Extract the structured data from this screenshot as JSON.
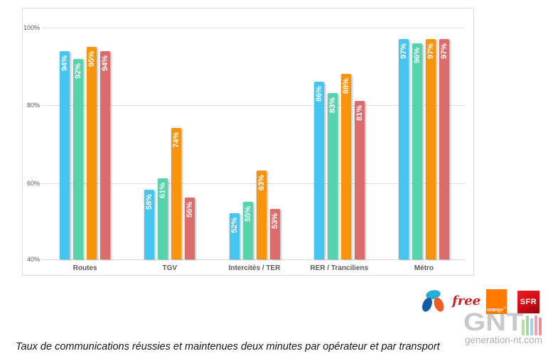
{
  "caption": "Taux de communications réussies et maintenues deux minutes par opérateur et par transport",
  "watermark": {
    "logo_text": "GNT",
    "site": "generation-nt.com"
  },
  "chart_data": {
    "type": "bar",
    "categories": [
      "Routes",
      "TGV",
      "Intercités / TER",
      "RER / Tranciliens",
      "Métro"
    ],
    "series": [
      {
        "name": "Bouygues Telecom",
        "color": "#45c6f2",
        "values": [
          94,
          58,
          52,
          86,
          97
        ]
      },
      {
        "name": "Free",
        "color": "#55d3aa",
        "values": [
          92,
          61,
          55,
          83,
          96
        ]
      },
      {
        "name": "Orange",
        "color": "#f8940a",
        "values": [
          95,
          74,
          63,
          88,
          97
        ]
      },
      {
        "name": "SFR",
        "color": "#dc6b6b",
        "values": [
          94,
          56,
          53,
          81,
          97
        ]
      }
    ],
    "value_suffix": "%",
    "ylim": [
      40,
      100
    ],
    "yticks": [
      {
        "value": 100,
        "label": "100%"
      },
      {
        "value": 80,
        "label": "80%"
      },
      {
        "value": 60,
        "label": "60%"
      },
      {
        "value": 40,
        "label": "40%"
      }
    ],
    "grid": true,
    "legend_position": "bottom-right",
    "title": ""
  },
  "legend": {
    "operators": [
      {
        "name": "Bouygues Telecom",
        "logo_text": "",
        "swatch_color": "#45c6f2"
      },
      {
        "name": "Free",
        "logo_text": "free",
        "swatch_color": "#55d3aa"
      },
      {
        "name": "Orange",
        "logo_text": "orange",
        "swatch_color": "#f8940a"
      },
      {
        "name": "SFR",
        "logo_text": "SFR",
        "swatch_color": "#dc6b6b"
      }
    ]
  }
}
